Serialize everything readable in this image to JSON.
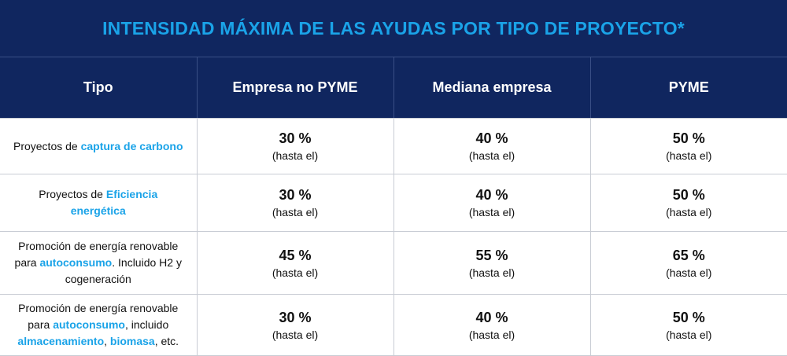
{
  "title": "INTENSIDAD MÁXIMA DE LAS AYUDAS POR TIPO DE PROYECTO*",
  "colors": {
    "header_bg": "#10265f",
    "accent": "#1aa3e8",
    "border": "#c8ccd4"
  },
  "headers": [
    "Tipo",
    "Empresa no PYME",
    "Mediana empresa",
    "PYME"
  ],
  "rows": [
    {
      "tipo": [
        {
          "text": "Proyectos de ",
          "hl": false
        },
        {
          "text": "captura de carbono",
          "hl": true
        }
      ],
      "values": [
        {
          "pct": "30 %",
          "note": "(hasta el)"
        },
        {
          "pct": "40 %",
          "note": "(hasta el)"
        },
        {
          "pct": "50 %",
          "note": "(hasta el)"
        }
      ]
    },
    {
      "tipo": [
        {
          "text": "Proyectos de ",
          "hl": false
        },
        {
          "text": "Eficiencia",
          "hl": true
        },
        {
          "text": "\n",
          "hl": false
        },
        {
          "text": "energética",
          "hl": true
        }
      ],
      "values": [
        {
          "pct": "30 %",
          "note": "(hasta el)"
        },
        {
          "pct": "40 %",
          "note": "(hasta el)"
        },
        {
          "pct": "50 %",
          "note": "(hasta el)"
        }
      ]
    },
    {
      "tipo": [
        {
          "text": "Promoción de energía renovable",
          "hl": false
        },
        {
          "text": "\n",
          "hl": false
        },
        {
          "text": "para ",
          "hl": false
        },
        {
          "text": "autoconsumo",
          "hl": true
        },
        {
          "text": ". Incluido H2 y",
          "hl": false
        },
        {
          "text": "\n",
          "hl": false
        },
        {
          "text": "cogeneración",
          "hl": false
        }
      ],
      "values": [
        {
          "pct": "45 %",
          "note": "(hasta el)"
        },
        {
          "pct": "55 %",
          "note": "(hasta el)"
        },
        {
          "pct": "65 %",
          "note": "(hasta el)"
        }
      ]
    },
    {
      "tipo": [
        {
          "text": "Promoción de energía renovable",
          "hl": false
        },
        {
          "text": "\n",
          "hl": false
        },
        {
          "text": "para ",
          "hl": false
        },
        {
          "text": "autoconsumo",
          "hl": true
        },
        {
          "text": ", incluido",
          "hl": false
        },
        {
          "text": "\n",
          "hl": false
        },
        {
          "text": "almacenamiento",
          "hl": true
        },
        {
          "text": ", ",
          "hl": false
        },
        {
          "text": "biomasa",
          "hl": true
        },
        {
          "text": ", etc.",
          "hl": false
        }
      ],
      "values": [
        {
          "pct": "30 %",
          "note": "(hasta el)"
        },
        {
          "pct": "40 %",
          "note": "(hasta el)"
        },
        {
          "pct": "50 %",
          "note": "(hasta el)"
        }
      ]
    }
  ]
}
